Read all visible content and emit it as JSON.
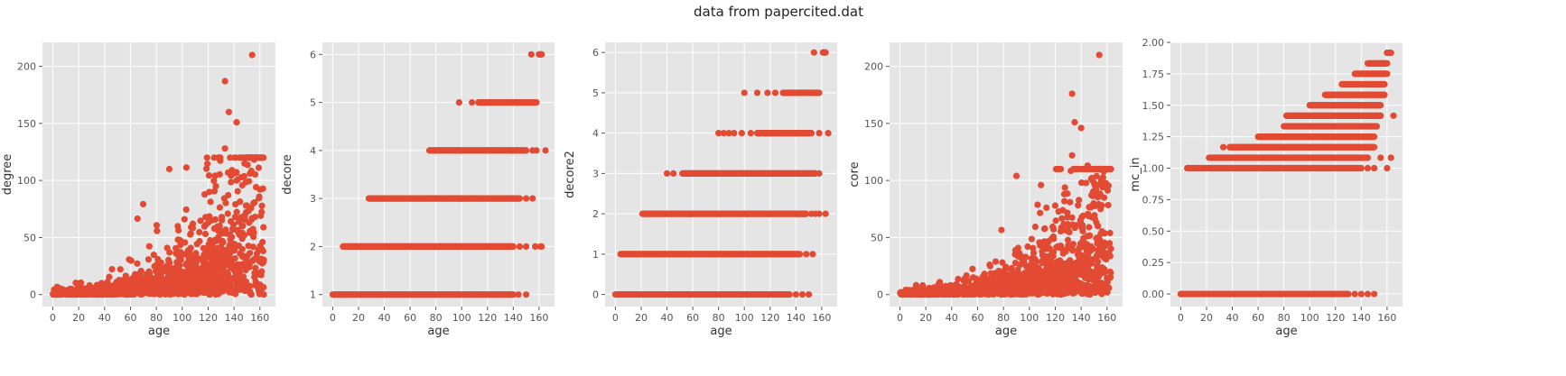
{
  "figure": {
    "title": "data from papercited.dat",
    "colors": {
      "axes_bg": "#e5e5e5",
      "grid": "#ffffff",
      "points": "#e24a33",
      "text": "#555555"
    }
  },
  "chart_data": [
    {
      "type": "scatter",
      "xlabel": "age",
      "ylabel": "degree",
      "xlim": [
        -8,
        172
      ],
      "ylim": [
        -10.5,
        221
      ],
      "xticks": [
        0,
        20,
        40,
        60,
        80,
        100,
        120,
        140,
        160
      ],
      "yticks": [
        0,
        50,
        100,
        150,
        200
      ],
      "ytick_labels": [
        "0",
        "50",
        "100",
        "150",
        "200"
      ],
      "grid": true,
      "notable_points": [
        {
          "x": 154,
          "y": 210
        },
        {
          "x": 133,
          "y": 187
        },
        {
          "x": 136,
          "y": 160
        },
        {
          "x": 142,
          "y": 151
        },
        {
          "x": 90,
          "y": 110
        },
        {
          "x": 133,
          "y": 128
        },
        {
          "x": 137,
          "y": 120
        },
        {
          "x": 142,
          "y": 100
        },
        {
          "x": 150,
          "y": 78
        },
        {
          "x": 155,
          "y": 80
        },
        {
          "x": 162,
          "y": 46
        },
        {
          "x": 126,
          "y": 95
        }
      ],
      "cloud": {
        "kind": "count",
        "x_range": [
          0,
          163
        ],
        "growth": 0.028,
        "base": 1.1,
        "n": 1500,
        "max": 120
      }
    },
    {
      "type": "scatter",
      "xlabel": "age",
      "ylabel": "decore",
      "xlim": [
        -8,
        172
      ],
      "ylim": [
        0.75,
        6.25
      ],
      "xticks": [
        0,
        20,
        40,
        60,
        80,
        100,
        120,
        140,
        160
      ],
      "yticks": [
        1,
        2,
        3,
        4,
        5,
        6
      ],
      "ytick_labels": [
        "1",
        "2",
        "3",
        "4",
        "5",
        "6"
      ],
      "grid": true,
      "levels": [
        {
          "y": 1,
          "x_start": 0,
          "x_end": 140,
          "stragglers": [
            144,
            150
          ]
        },
        {
          "y": 2,
          "x_start": 8,
          "x_end": 140,
          "stragglers": [
            145,
            150,
            157,
            161,
            162
          ]
        },
        {
          "y": 3,
          "x_start": 28,
          "x_end": 145,
          "stragglers": [
            150,
            155
          ]
        },
        {
          "y": 4,
          "x_start": 75,
          "x_end": 150,
          "stragglers": [
            155,
            158,
            165
          ]
        },
        {
          "y": 5,
          "x_start": 113,
          "x_end": 158,
          "stragglers": [
            98,
            108
          ]
        },
        {
          "y": 6,
          "x_start": 160,
          "x_end": 162,
          "stragglers": [
            154
          ]
        }
      ]
    },
    {
      "type": "scatter",
      "xlabel": "age",
      "ylabel": "decore2",
      "xlim": [
        -8,
        172
      ],
      "ylim": [
        -0.3,
        6.25
      ],
      "xticks": [
        0,
        20,
        40,
        60,
        80,
        100,
        120,
        140,
        160
      ],
      "yticks": [
        0,
        1,
        2,
        3,
        4,
        5,
        6
      ],
      "ytick_labels": [
        "0",
        "1",
        "2",
        "3",
        "4",
        "5",
        "6"
      ],
      "grid": true,
      "levels": [
        {
          "y": 0,
          "x_start": 0,
          "x_end": 135,
          "stragglers": [
            140,
            145,
            150
          ]
        },
        {
          "y": 1,
          "x_start": 4,
          "x_end": 143,
          "stragglers": [
            148,
            153
          ]
        },
        {
          "y": 2,
          "x_start": 21,
          "x_end": 148,
          "stragglers": [
            152,
            155,
            158,
            163
          ]
        },
        {
          "y": 3,
          "x_start": 52,
          "x_end": 155,
          "stragglers": [
            40,
            45,
            158
          ]
        },
        {
          "y": 4,
          "x_start": 110,
          "x_end": 152,
          "stragglers": [
            80,
            84,
            88,
            92,
            98,
            105,
            158,
            165
          ]
        },
        {
          "y": 5,
          "x_start": 130,
          "x_end": 158,
          "stragglers": [
            100,
            110,
            118,
            124
          ]
        },
        {
          "y": 6,
          "x_start": 161,
          "x_end": 163,
          "stragglers": [
            154
          ]
        }
      ]
    },
    {
      "type": "scatter",
      "xlabel": "age",
      "ylabel": "core",
      "xlim": [
        -8,
        172
      ],
      "ylim": [
        -10.5,
        221
      ],
      "xticks": [
        0,
        20,
        40,
        60,
        80,
        100,
        120,
        140,
        160
      ],
      "yticks": [
        0,
        50,
        100,
        150,
        200
      ],
      "ytick_labels": [
        "0",
        "50",
        "100",
        "150",
        "200"
      ],
      "grid": true,
      "notable_points": [
        {
          "x": 154,
          "y": 210
        },
        {
          "x": 133,
          "y": 176
        },
        {
          "x": 135,
          "y": 151
        },
        {
          "x": 140,
          "y": 146
        },
        {
          "x": 90,
          "y": 104
        },
        {
          "x": 133,
          "y": 122
        },
        {
          "x": 134,
          "y": 110
        },
        {
          "x": 145,
          "y": 113
        },
        {
          "x": 148,
          "y": 87
        },
        {
          "x": 155,
          "y": 75
        },
        {
          "x": 162,
          "y": 45
        },
        {
          "x": 127,
          "y": 88
        }
      ],
      "cloud": {
        "kind": "count",
        "x_range": [
          0,
          163
        ],
        "growth": 0.027,
        "base": 1.0,
        "n": 1500,
        "max": 110
      }
    },
    {
      "type": "scatter",
      "xlabel": "age",
      "ylabel": "mc_in",
      "xlim": [
        -8,
        172
      ],
      "ylim": [
        -0.1,
        2.0
      ],
      "xticks": [
        0,
        20,
        40,
        60,
        80,
        100,
        120,
        140,
        160
      ],
      "yticks": [
        0,
        0.25,
        0.5,
        0.75,
        1.0,
        1.25,
        1.5,
        1.75,
        2.0
      ],
      "ytick_labels": [
        "0.00",
        "0.25",
        "0.50",
        "0.75",
        "1.00",
        "1.25",
        "1.50",
        "1.75",
        "2.00"
      ],
      "grid": true,
      "levels": [
        {
          "y": 0,
          "x_start": 0,
          "x_end": 130,
          "stragglers": [
            135,
            140,
            145,
            150
          ]
        },
        {
          "y": 1.0,
          "x_start": 5,
          "x_end": 140,
          "stragglers": [
            145,
            150,
            160
          ]
        },
        {
          "y": 1.083,
          "x_start": 22,
          "x_end": 145,
          "stragglers": [
            155,
            163
          ]
        },
        {
          "y": 1.167,
          "x_start": 38,
          "x_end": 150,
          "stragglers": [
            33
          ]
        },
        {
          "y": 1.25,
          "x_start": 60,
          "x_end": 150,
          "stragglers": []
        },
        {
          "y": 1.333,
          "x_start": 80,
          "x_end": 152,
          "stragglers": []
        },
        {
          "y": 1.417,
          "x_start": 82,
          "x_end": 155,
          "stragglers": [
            165
          ]
        },
        {
          "y": 1.5,
          "x_start": 100,
          "x_end": 155,
          "stragglers": []
        },
        {
          "y": 1.583,
          "x_start": 112,
          "x_end": 158,
          "stragglers": []
        },
        {
          "y": 1.667,
          "x_start": 125,
          "x_end": 158,
          "stragglers": []
        },
        {
          "y": 1.75,
          "x_start": 135,
          "x_end": 160,
          "stragglers": []
        },
        {
          "y": 1.833,
          "x_start": 145,
          "x_end": 160,
          "stragglers": []
        },
        {
          "y": 1.917,
          "x_start": 160,
          "x_end": 163,
          "stragglers": []
        }
      ]
    }
  ]
}
